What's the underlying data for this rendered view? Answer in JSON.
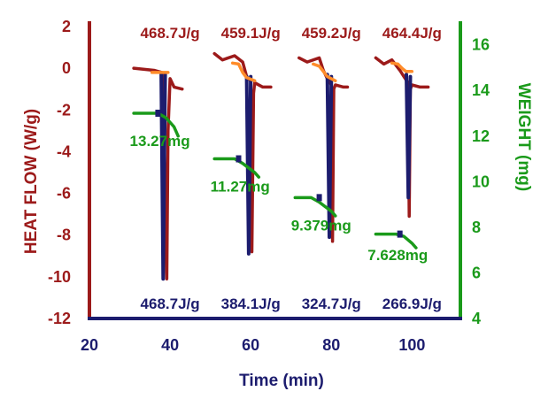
{
  "chart_data": {
    "type": "line",
    "title": "",
    "xlabel": "Time (min)",
    "ylabel_left": "HEAT FLOW (W/g)",
    "ylabel_right": "WEIGHT (mg)",
    "xlim": [
      20,
      112
    ],
    "ylim_left": [
      -12,
      2
    ],
    "ylim_right": [
      4,
      16.8
    ],
    "x_ticks": [
      20,
      40,
      60,
      80,
      100
    ],
    "y_left_ticks": [
      2,
      0,
      -2,
      -4,
      -6,
      -8,
      -10,
      -12
    ],
    "y_right_ticks": [
      16,
      14,
      12,
      10,
      8,
      6,
      4
    ],
    "grid": false,
    "colors": {
      "heat_flow_outer": "#9c1a1a",
      "heat_flow_inner": "#1c1c6e",
      "baseline_fit": "#ff8c2a",
      "weight": "#1a9a1a",
      "left_axis": "#9c1a1a",
      "right_axis": "#1a9a1a",
      "bottom_axis": "#1c1c6e"
    },
    "series": [
      {
        "role": "heat_flow_outer",
        "runs": [
          {
            "points": [
              [
                31,
                0
              ],
              [
                36,
                -0.1
              ],
              [
                38,
                -0.2
              ],
              [
                38.5,
                -3
              ],
              [
                39,
                -8
              ],
              [
                39.2,
                -10.1
              ],
              [
                39.5,
                -3
              ],
              [
                40,
                -0.5
              ],
              [
                41,
                -0.9
              ],
              [
                43,
                -1
              ]
            ]
          },
          {
            "points": [
              [
                51,
                0.7
              ],
              [
                53,
                0.4
              ],
              [
                56,
                0.6
              ],
              [
                58,
                0.3
              ],
              [
                59,
                -0.4
              ],
              [
                60,
                -0.6
              ],
              [
                60.3,
                -8.8
              ],
              [
                60.7,
                -1.2
              ],
              [
                61,
                -0.7
              ],
              [
                63,
                -0.9
              ],
              [
                65,
                -0.9
              ]
            ]
          },
          {
            "points": [
              [
                72,
                0.5
              ],
              [
                74,
                0.3
              ],
              [
                77,
                0.5
              ],
              [
                78,
                -0.1
              ],
              [
                79,
                -0.5
              ],
              [
                80,
                -0.8
              ],
              [
                80.3,
                -8.3
              ],
              [
                80.6,
                -1
              ],
              [
                81,
                -0.8
              ],
              [
                83,
                -0.9
              ],
              [
                84,
                -0.9
              ]
            ]
          },
          {
            "points": [
              [
                91,
                0.5
              ],
              [
                93,
                0.2
              ],
              [
                95,
                0.4
              ],
              [
                97,
                -0.1
              ],
              [
                98,
                -0.4
              ],
              [
                99,
                -0.7
              ],
              [
                99.3,
                -7.1
              ],
              [
                99.6,
                -1
              ],
              [
                100,
                -0.8
              ],
              [
                102,
                -0.9
              ],
              [
                104,
                -0.9
              ]
            ]
          }
        ]
      },
      {
        "role": "heat_flow_inner",
        "runs": [
          {
            "points": [
              [
                37.8,
                -0.3
              ],
              [
                38.3,
                -10.1
              ],
              [
                38.8,
                -0.3
              ]
            ]
          },
          {
            "points": [
              [
                59,
                -0.4
              ],
              [
                59.5,
                -8.9
              ],
              [
                60,
                -0.4
              ]
            ]
          },
          {
            "points": [
              [
                79,
                -0.3
              ],
              [
                79.5,
                -8.1
              ],
              [
                80,
                -0.4
              ]
            ]
          },
          {
            "points": [
              [
                98.6,
                -0.3
              ],
              [
                99.1,
                -6.2
              ],
              [
                99.6,
                -0.4
              ]
            ]
          }
        ]
      },
      {
        "role": "baseline_fit",
        "runs": [
          {
            "points": [
              [
                35.5,
                -0.2
              ],
              [
                39.5,
                -0.2
              ]
            ]
          },
          {
            "points": [
              [
                55.5,
                0.25
              ],
              [
                57,
                0.2
              ],
              [
                58,
                -0.2
              ],
              [
                59,
                -0.45
              ],
              [
                61,
                -0.6
              ]
            ]
          },
          {
            "points": [
              [
                75.5,
                0.2
              ],
              [
                77,
                0.1
              ],
              [
                78,
                -0.15
              ],
              [
                79,
                -0.4
              ],
              [
                81,
                -0.6
              ]
            ]
          },
          {
            "points": [
              [
                95,
                0.25
              ],
              [
                96.5,
                0.2
              ],
              [
                97.5,
                0
              ],
              [
                98.5,
                -0.15
              ],
              [
                100,
                -0.15
              ]
            ]
          }
        ]
      },
      {
        "role": "weight",
        "axis": "right",
        "runs": [
          {
            "points": [
              [
                31,
                13.0
              ],
              [
                37,
                13.0
              ],
              [
                39,
                12.8
              ],
              [
                41,
                12.4
              ],
              [
                42,
                12.0
              ]
            ]
          },
          {
            "points": [
              [
                51,
                11.0
              ],
              [
                56,
                11.0
              ],
              [
                58,
                10.8
              ],
              [
                61,
                10.4
              ],
              [
                62,
                10.2
              ]
            ]
          },
          {
            "points": [
              [
                71,
                9.3
              ],
              [
                75,
                9.3
              ],
              [
                77,
                9.1
              ],
              [
                80,
                8.7
              ],
              [
                81,
                8.5
              ]
            ]
          },
          {
            "points": [
              [
                91,
                7.7
              ],
              [
                96,
                7.7
              ],
              [
                98,
                7.6
              ],
              [
                100,
                7.3
              ],
              [
                101,
                7.1
              ]
            ]
          }
        ],
        "markers": [
          [
            37,
            13.0
          ],
          [
            57,
            11.0
          ],
          [
            77,
            9.3
          ],
          [
            97,
            7.7
          ]
        ]
      }
    ],
    "annotations_top": [
      {
        "text": "468.7J/g",
        "x": 40
      },
      {
        "text": "459.1J/g",
        "x": 60
      },
      {
        "text": "459.2J/g",
        "x": 80
      },
      {
        "text": "464.4J/g",
        "x": 100
      }
    ],
    "annotations_bottom": [
      {
        "text": "468.7J/g",
        "x": 40
      },
      {
        "text": "384.1J/g",
        "x": 60
      },
      {
        "text": "324.7J/g",
        "x": 80
      },
      {
        "text": "266.9J/g",
        "x": 100
      }
    ],
    "annotations_weight": [
      {
        "text": "13.27mg",
        "x": 30,
        "y": 11.8
      },
      {
        "text": "11.27mg",
        "x": 50,
        "y": 9.8
      },
      {
        "text": "9.379mg",
        "x": 70,
        "y": 8.1
      },
      {
        "text": "7.628mg",
        "x": 89,
        "y": 6.8
      }
    ]
  }
}
